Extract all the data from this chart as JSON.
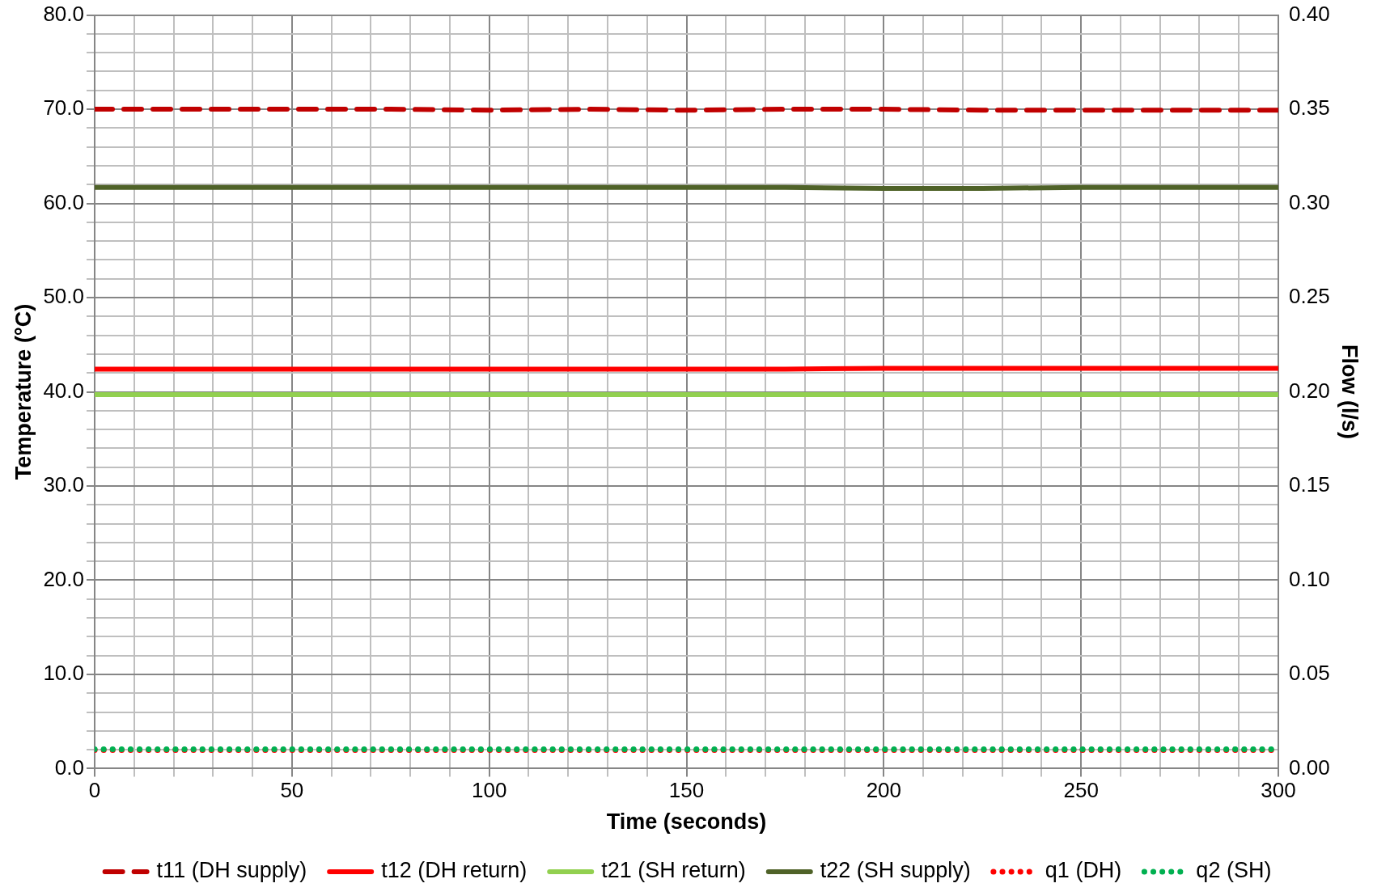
{
  "chart_data": {
    "type": "line",
    "xlabel": "Time (seconds)",
    "ylabel": "Temperature (°C)",
    "y2label": "Flow (l/s)",
    "x": [
      0,
      25,
      50,
      75,
      100,
      125,
      150,
      175,
      200,
      225,
      250,
      275,
      300
    ],
    "series": [
      {
        "name": "t11 (DH supply)",
        "color": "#c00000",
        "line_style": "dashed",
        "values": [
          70.0,
          70.0,
          70.0,
          70.0,
          69.9,
          70.0,
          69.9,
          70.0,
          70.0,
          69.9,
          69.9,
          69.9,
          69.9
        ]
      },
      {
        "name": "t12 (DH return)",
        "color": "#ff0000",
        "line_style": "solid",
        "values": [
          42.4,
          42.4,
          42.4,
          42.4,
          42.4,
          42.4,
          42.4,
          42.4,
          42.5,
          42.5,
          42.5,
          42.5,
          42.5
        ]
      },
      {
        "name": "t21 (SH return)",
        "color": "#92d050",
        "line_style": "solid",
        "values": [
          39.7,
          39.7,
          39.7,
          39.7,
          39.7,
          39.7,
          39.7,
          39.7,
          39.7,
          39.7,
          39.7,
          39.7,
          39.7
        ]
      },
      {
        "name": "t22 (SH supply)",
        "color": "#4f6228",
        "line_style": "solid",
        "values": [
          61.7,
          61.7,
          61.7,
          61.7,
          61.7,
          61.7,
          61.7,
          61.7,
          61.6,
          61.6,
          61.7,
          61.7,
          61.7
        ]
      },
      {
        "name": "q1 (DH)",
        "color": "#ff0000",
        "line_style": "dotted",
        "axis": "y2",
        "values": [
          0.0098,
          0.0098,
          0.0098,
          0.0098,
          0.0098,
          0.0098,
          0.0098,
          0.0098,
          0.0098,
          0.0098,
          0.0098,
          0.0098,
          0.0098
        ]
      },
      {
        "name": "q2 (SH)",
        "color": "#00b050",
        "line_style": "dotted",
        "axis": "y2",
        "values": [
          0.0103,
          0.0103,
          0.0103,
          0.0103,
          0.0103,
          0.0103,
          0.0103,
          0.0103,
          0.0103,
          0.0103,
          0.0103,
          0.0103,
          0.0103
        ]
      }
    ],
    "xlim": [
      0,
      300
    ],
    "xticks": [
      0,
      {
        "value": 10,
        "label": null
      },
      {
        "value": 20,
        "label": null
      },
      {
        "value": 30,
        "label": null
      },
      {
        "value": 40,
        "label": null
      },
      50,
      {
        "value": 60,
        "label": null
      },
      {
        "value": 70,
        "label": null
      },
      {
        "value": 80,
        "label": null
      },
      {
        "value": 90,
        "label": null
      },
      100,
      {
        "value": 110,
        "label": null
      },
      {
        "value": 120,
        "label": null
      },
      {
        "value": 130,
        "label": null
      },
      {
        "value": 140,
        "label": null
      },
      150,
      {
        "value": 160,
        "label": null
      },
      {
        "value": 170,
        "label": null
      },
      {
        "value": 180,
        "label": null
      },
      {
        "value": 190,
        "label": null
      },
      200,
      {
        "value": 210,
        "label": null
      },
      {
        "value": 220,
        "label": null
      },
      {
        "value": 230,
        "label": null
      },
      {
        "value": 240,
        "label": null
      },
      250,
      {
        "value": 260,
        "label": null
      },
      {
        "value": 270,
        "label": null
      },
      {
        "value": 280,
        "label": null
      },
      {
        "value": 290,
        "label": null
      },
      300
    ],
    "ylim": [
      0,
      80
    ],
    "yticks": [
      {
        "value": 0,
        "label": "0.0"
      },
      {
        "value": 2,
        "label": null
      },
      {
        "value": 4,
        "label": null
      },
      {
        "value": 6,
        "label": null
      },
      {
        "value": 8,
        "label": null
      },
      {
        "value": 10,
        "label": "10.0"
      },
      {
        "value": 12,
        "label": null
      },
      {
        "value": 14,
        "label": null
      },
      {
        "value": 16,
        "label": null
      },
      {
        "value": 18,
        "label": null
      },
      {
        "value": 20,
        "label": "20.0"
      },
      {
        "value": 22,
        "label": null
      },
      {
        "value": 24,
        "label": null
      },
      {
        "value": 26,
        "label": null
      },
      {
        "value": 28,
        "label": null
      },
      {
        "value": 30,
        "label": "30.0"
      },
      {
        "value": 32,
        "label": null
      },
      {
        "value": 34,
        "label": null
      },
      {
        "value": 36,
        "label": null
      },
      {
        "value": 38,
        "label": null
      },
      {
        "value": 40,
        "label": "40.0"
      },
      {
        "value": 42,
        "label": null
      },
      {
        "value": 44,
        "label": null
      },
      {
        "value": 46,
        "label": null
      },
      {
        "value": 48,
        "label": null
      },
      {
        "value": 50,
        "label": "50.0"
      },
      {
        "value": 52,
        "label": null
      },
      {
        "value": 54,
        "label": null
      },
      {
        "value": 56,
        "label": null
      },
      {
        "value": 58,
        "label": null
      },
      {
        "value": 60,
        "label": "60.0"
      },
      {
        "value": 62,
        "label": null
      },
      {
        "value": 64,
        "label": null
      },
      {
        "value": 66,
        "label": null
      },
      {
        "value": 68,
        "label": null
      },
      {
        "value": 70,
        "label": "70.0"
      },
      {
        "value": 72,
        "label": null
      },
      {
        "value": 74,
        "label": null
      },
      {
        "value": 76,
        "label": null
      },
      {
        "value": 78,
        "label": null
      },
      {
        "value": 80,
        "label": "80.0"
      }
    ],
    "y2lim": [
      0,
      0.4
    ],
    "y2ticks": [
      {
        "value": 0,
        "label": "0.00"
      },
      {
        "value": 0.05,
        "label": "0.05"
      },
      {
        "value": 0.1,
        "label": "0.10"
      },
      {
        "value": 0.15,
        "label": "0.15"
      },
      {
        "value": 0.2,
        "label": "0.20"
      },
      {
        "value": 0.25,
        "label": "0.25"
      },
      {
        "value": 0.3,
        "label": "0.30"
      },
      {
        "value": 0.35,
        "label": "0.35"
      },
      {
        "value": 0.4,
        "label": "0.40"
      }
    ],
    "grid": true,
    "legend": "bottom",
    "marker": "none"
  }
}
